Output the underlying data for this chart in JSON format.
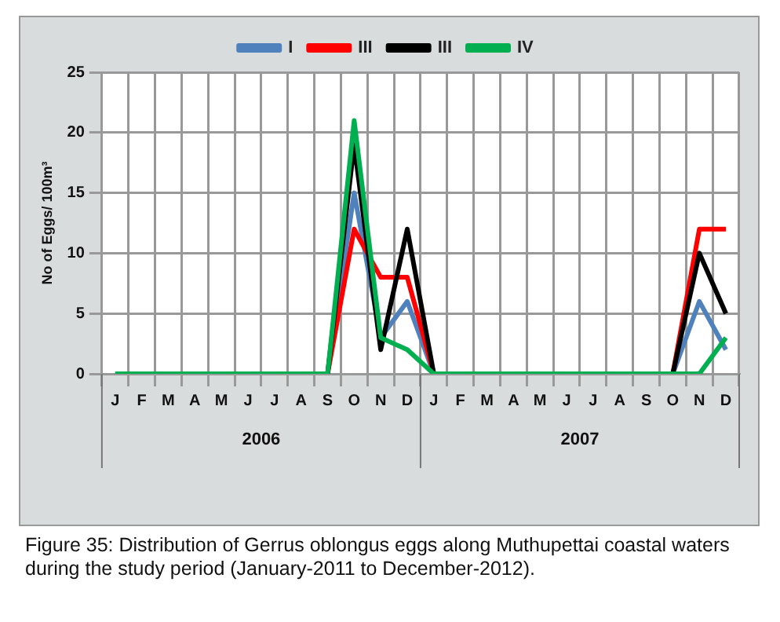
{
  "chart_data": {
    "type": "line",
    "ylabel": "No of Eggs/ 100m³",
    "categories": [
      "J",
      "F",
      "M",
      "A",
      "M",
      "J",
      "J",
      "A",
      "S",
      "O",
      "N",
      "D",
      "J",
      "F",
      "M",
      "A",
      "M",
      "J",
      "J",
      "A",
      "S",
      "O",
      "N",
      "D"
    ],
    "series": [
      {
        "name": "I",
        "color": "#4f81bd",
        "values": [
          null,
          null,
          null,
          null,
          null,
          null,
          null,
          null,
          0,
          15,
          3,
          6,
          0,
          null,
          null,
          null,
          null,
          null,
          null,
          null,
          null,
          0,
          6,
          2
        ]
      },
      {
        "name": "III",
        "color": "#ff0000",
        "values": [
          null,
          null,
          null,
          null,
          null,
          null,
          null,
          null,
          0,
          12,
          8,
          8,
          0,
          null,
          null,
          null,
          null,
          null,
          null,
          null,
          null,
          0,
          12,
          12
        ]
      },
      {
        "name": "III",
        "color": "#000000",
        "values": [
          null,
          null,
          null,
          null,
          null,
          null,
          null,
          null,
          0,
          19,
          2,
          12,
          0,
          null,
          null,
          null,
          null,
          null,
          null,
          null,
          null,
          0,
          10,
          5
        ]
      },
      {
        "name": "IV",
        "color": "#00b050",
        "values": [
          0,
          0,
          0,
          0,
          0,
          0,
          0,
          0,
          0,
          21,
          3,
          2,
          0,
          0,
          0,
          0,
          0,
          0,
          0,
          0,
          0,
          0,
          0,
          3
        ]
      }
    ],
    "ylim": [
      0,
      25
    ],
    "yticks": [
      0,
      5,
      10,
      15,
      20,
      25
    ],
    "grid": true,
    "legend": "top",
    "marker": "none",
    "line_style": "solid",
    "annotations": [
      "2006",
      "2007",
      "Figure 35: Distribution of Gerrus oblongus eggs along Muthupettai coastal waters during the study period (January-2011 to December-2012)."
    ]
  }
}
